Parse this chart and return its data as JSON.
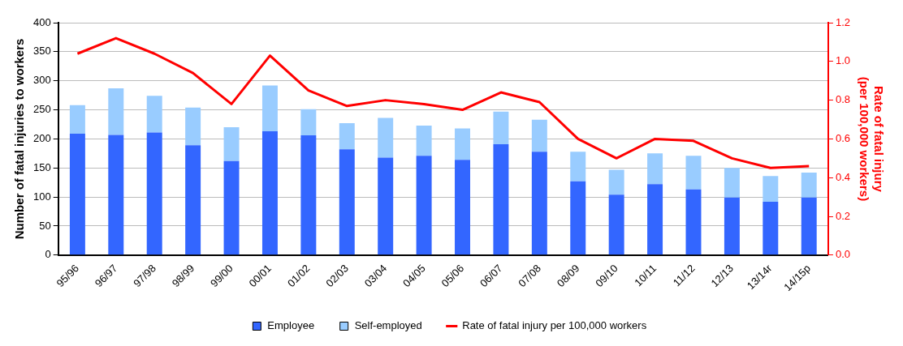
{
  "chart_data": {
    "type": "bar",
    "stacked": true,
    "ylabel": "Number of fatal injuries to workers",
    "y2label": "Rate of fatal injury\n(per 100,000 workers)",
    "categories": [
      "95/96",
      "96/97",
      "97/98",
      "98/99",
      "99/00",
      "00/01",
      "01/02",
      "02/03",
      "03/04",
      "04/05",
      "05/06",
      "06/07",
      "07/08",
      "08/09",
      "09/10",
      "10/11",
      "11/12",
      "12/13",
      "13/14r",
      "14/15p"
    ],
    "series": [
      {
        "name": "Employee",
        "color": "#3366ff",
        "values": [
          209,
          207,
          211,
          189,
          162,
          213,
          206,
          182,
          168,
          171,
          164,
          191,
          178,
          127,
          104,
          122,
          113,
          99,
          92,
          99
        ]
      },
      {
        "name": "Self-employed",
        "color": "#99ccff",
        "values": [
          49,
          80,
          63,
          65,
          58,
          79,
          45,
          45,
          68,
          52,
          54,
          56,
          55,
          51,
          43,
          53,
          58,
          51,
          44,
          43
        ]
      },
      {
        "name": "Rate of fatal injury per 100,000 workers",
        "type": "line",
        "axis": "y2",
        "color": "#ff0000",
        "values": [
          1.04,
          1.12,
          1.04,
          0.94,
          0.78,
          1.03,
          0.85,
          0.77,
          0.8,
          0.78,
          0.75,
          0.84,
          0.79,
          0.6,
          0.5,
          0.6,
          0.59,
          0.5,
          0.45,
          0.46
        ]
      }
    ],
    "ylim": [
      0,
      400
    ],
    "yticks": [
      0,
      50,
      100,
      150,
      200,
      250,
      300,
      350,
      400
    ],
    "y2lim": [
      0,
      1.2
    ],
    "y2ticks": [
      {
        "value": 0,
        "label": "0.0"
      },
      0.2,
      0.4,
      0.6,
      0.8,
      {
        "value": 1,
        "label": "1.0"
      },
      1.2
    ],
    "grid": "y",
    "legend": "bottom",
    "marker": "none",
    "line_style": "solid"
  }
}
